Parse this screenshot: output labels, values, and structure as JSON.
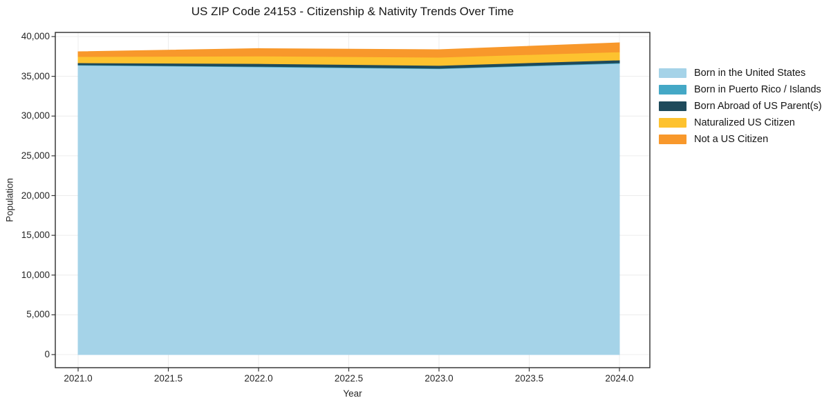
{
  "title": "US ZIP Code 24153 - Citizenship & Nativity Trends Over Time",
  "axes": {
    "x": {
      "label": "Year",
      "ticks": [
        "2021.0",
        "2021.5",
        "2022.0",
        "2022.5",
        "2023.0",
        "2023.5",
        "2024.0"
      ]
    },
    "y": {
      "label": "Population",
      "ticks": [
        "0",
        "5,000",
        "10,000",
        "15,000",
        "20,000",
        "25,000",
        "30,000",
        "35,000",
        "40,000"
      ]
    }
  },
  "palette": {
    "grid": "#ececec",
    "spine": "#2b2b2b",
    "tick": "#333333",
    "text": "#262626",
    "background": "#ffffff"
  },
  "chart_data": {
    "type": "area",
    "stacked": true,
    "title": "US ZIP Code 24153 - Citizenship & Nativity Trends Over Time",
    "xlabel": "Year",
    "ylabel": "Population",
    "x": [
      2021,
      2022,
      2023,
      2024
    ],
    "series": [
      {
        "name": "Born in the United States",
        "color": "#a5d3e8",
        "values": [
          36390,
          36180,
          35950,
          36620
        ]
      },
      {
        "name": "Born in Puerto Rico / Islands",
        "color": "#44a8c6",
        "values": [
          50,
          70,
          60,
          80
        ]
      },
      {
        "name": "Born Abroad of US Parent(s)",
        "color": "#1e4a5b",
        "values": [
          260,
          350,
          360,
          350
        ]
      },
      {
        "name": "Naturalized US Citizen",
        "color": "#fdc22f",
        "values": [
          780,
          950,
          1030,
          1020
        ]
      },
      {
        "name": "Not a US Citizen",
        "color": "#f8982b",
        "values": [
          610,
          940,
          950,
          1150
        ]
      }
    ],
    "xlim": [
      2020.87,
      2024.17
    ],
    "ylim": [
      -1650,
      40520
    ],
    "grid": true,
    "legend_position": "outside-right"
  }
}
